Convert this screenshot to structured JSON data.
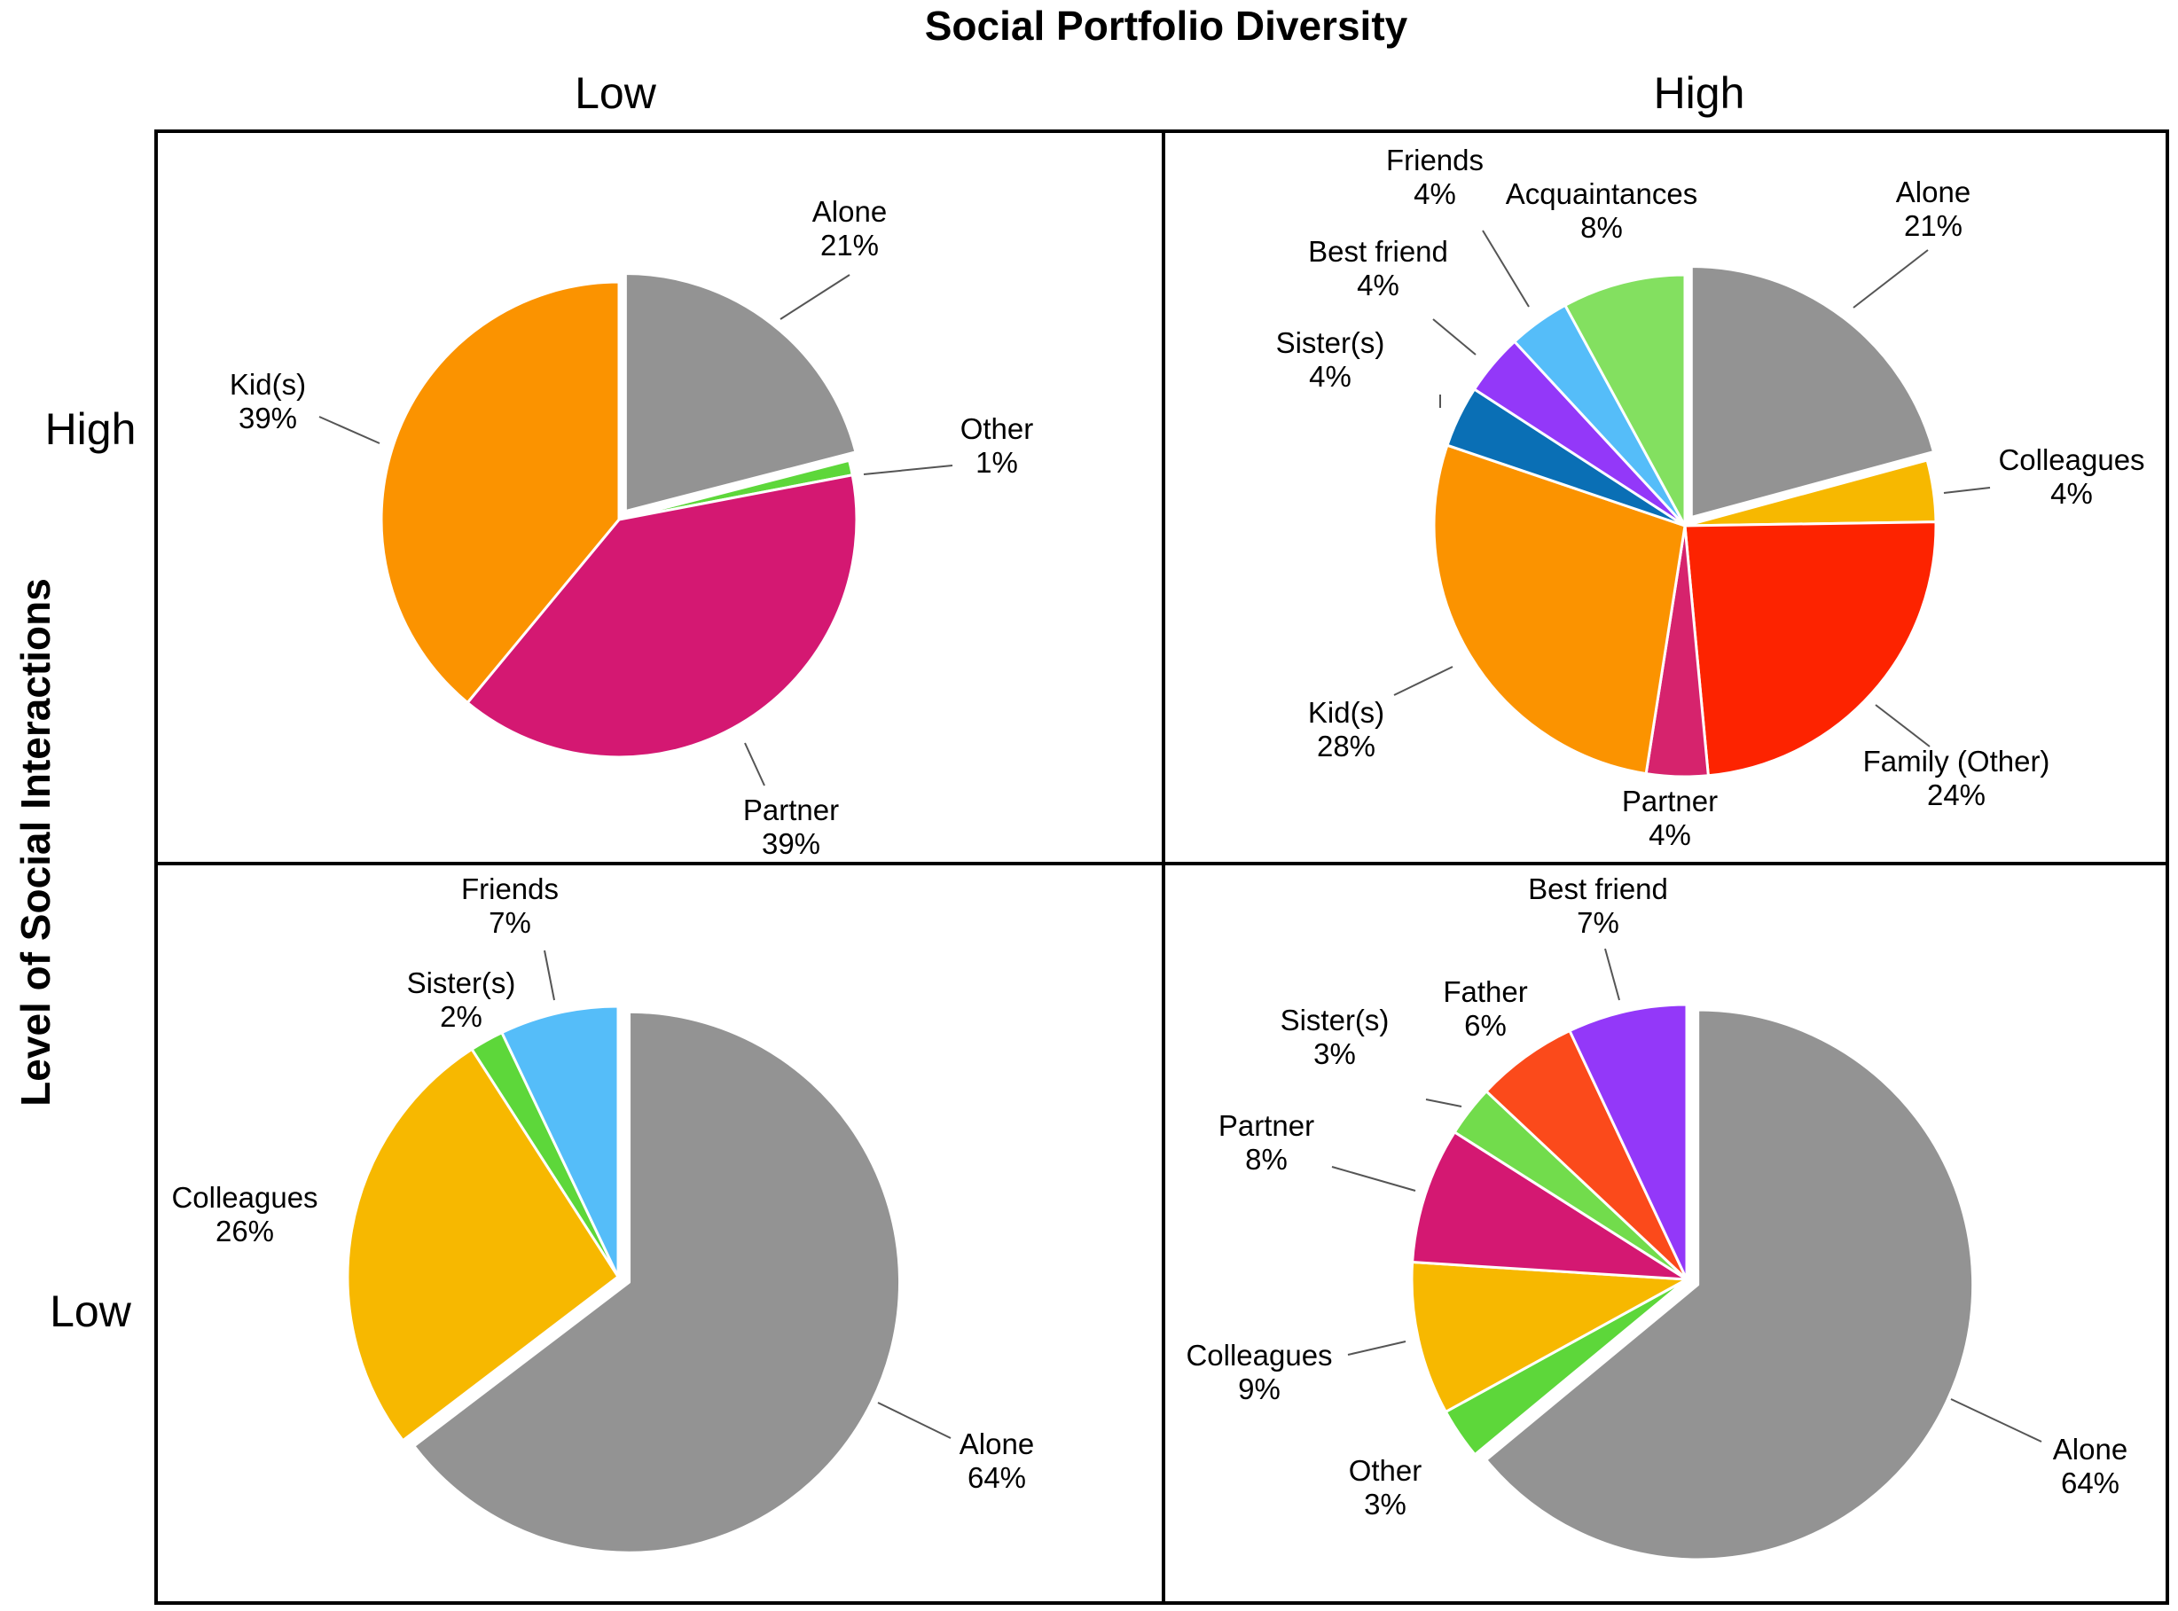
{
  "figure": {
    "title": "Social Portfolio Diversity",
    "x_group_label": "Social Portfolio Diversity",
    "y_axis_title": "Level of Social Interactions",
    "column_headers": [
      "Low",
      "High"
    ],
    "row_headers": [
      "High",
      "Low"
    ]
  },
  "chart_data": [
    {
      "type": "pie",
      "title": "High interactions / Low diversity",
      "row": "High",
      "column": "Low",
      "slices": [
        {
          "label": "Alone",
          "value": 21,
          "pct": "21%",
          "color": "#939393",
          "exploded": true
        },
        {
          "label": "Other",
          "value": 1,
          "pct": "1%",
          "color": "#5dd73a",
          "exploded": false
        },
        {
          "label": "Partner",
          "value": 39,
          "pct": "39%",
          "color": "#d41872",
          "exploded": false
        },
        {
          "label": "Kid(s)",
          "value": 39,
          "pct": "39%",
          "color": "#fb9300",
          "exploded": false
        }
      ]
    },
    {
      "type": "pie",
      "title": "High interactions / High diversity",
      "row": "High",
      "column": "High",
      "slices": [
        {
          "label": "Alone",
          "value": 21,
          "pct": "21%",
          "color": "#939393",
          "exploded": true
        },
        {
          "label": "Colleagues",
          "value": 4,
          "pct": "4%",
          "color": "#f7b800",
          "exploded": false
        },
        {
          "label": "Family (Other)",
          "value": 24,
          "pct": "24%",
          "color": "#fd2300",
          "exploded": false
        },
        {
          "label": "Partner",
          "value": 4,
          "pct": "4%",
          "color": "#d6236d",
          "exploded": false
        },
        {
          "label": "Kid(s)",
          "value": 28,
          "pct": "28%",
          "color": "#fb9300",
          "exploded": false
        },
        {
          "label": "Sister(s)",
          "value": 4,
          "pct": "4%",
          "color": "#0a6fb5",
          "exploded": false
        },
        {
          "label": "Best friend",
          "value": 4,
          "pct": "4%",
          "color": "#9338f9",
          "exploded": false
        },
        {
          "label": "Friends",
          "value": 4,
          "pct": "4%",
          "color": "#55bdf9",
          "exploded": false
        },
        {
          "label": "Acquaintances",
          "value": 8,
          "pct": "8%",
          "color": "#83e060",
          "exploded": false
        }
      ]
    },
    {
      "type": "pie",
      "title": "Low interactions / Low diversity",
      "row": "Low",
      "column": "Low",
      "slices": [
        {
          "label": "Alone",
          "value": 64,
          "pct": "64%",
          "color": "#939393",
          "exploded": true
        },
        {
          "label": "Colleagues",
          "value": 26,
          "pct": "26%",
          "color": "#f7b800",
          "exploded": false
        },
        {
          "label": "Sister(s)",
          "value": 2,
          "pct": "2%",
          "color": "#5dd73a",
          "exploded": false
        },
        {
          "label": "Friends",
          "value": 7,
          "pct": "7%",
          "color": "#55bdf9",
          "exploded": false
        }
      ]
    },
    {
      "type": "pie",
      "title": "Low interactions / High diversity",
      "row": "Low",
      "column": "High",
      "slices": [
        {
          "label": "Alone",
          "value": 64,
          "pct": "64%",
          "color": "#939393",
          "exploded": true
        },
        {
          "label": "Other",
          "value": 3,
          "pct": "3%",
          "color": "#5dd73a",
          "exploded": false
        },
        {
          "label": "Colleagues",
          "value": 9,
          "pct": "9%",
          "color": "#f7b800",
          "exploded": false
        },
        {
          "label": "Partner",
          "value": 8,
          "pct": "8%",
          "color": "#d41872",
          "exploded": false
        },
        {
          "label": "Sister(s)",
          "value": 3,
          "pct": "3%",
          "color": "#72dc4c",
          "exploded": false
        },
        {
          "label": "Father",
          "value": 6,
          "pct": "6%",
          "color": "#fb4a1b",
          "exploded": false
        },
        {
          "label": "Best friend",
          "value": 7,
          "pct": "7%",
          "color": "#9338f9",
          "exploded": false
        }
      ]
    }
  ]
}
